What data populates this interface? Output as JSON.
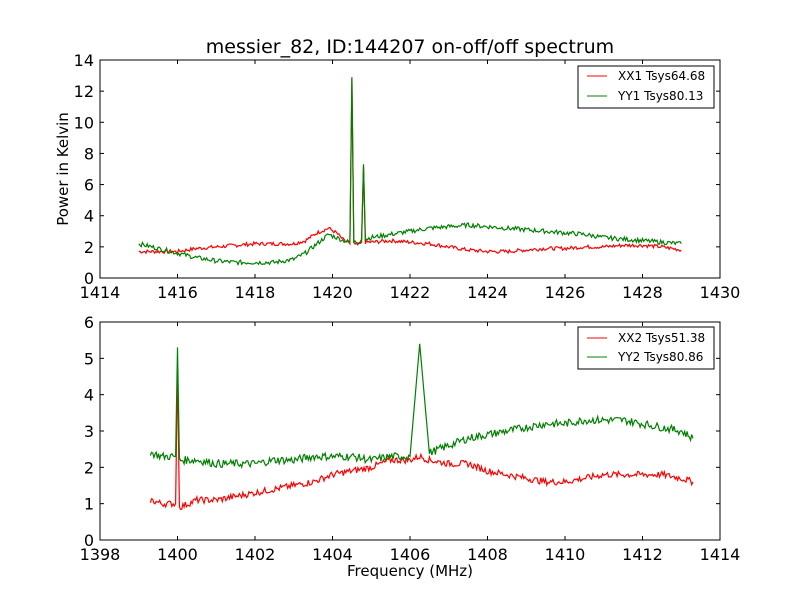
{
  "chart_data": [
    {
      "type": "line",
      "title": "messier_82, ID:144207 on-off/off spectrum",
      "xlabel": "",
      "ylabel": "Power in Kelvin",
      "xlim": [
        1414,
        1430
      ],
      "ylim": [
        0,
        14
      ],
      "xticks": [
        "1414",
        "1416",
        "1418",
        "1420",
        "1422",
        "1424",
        "1426",
        "1428",
        "1430"
      ],
      "yticks": [
        "0",
        "2",
        "4",
        "6",
        "8",
        "10",
        "12",
        "14"
      ],
      "grid": false,
      "legend_position": "top-right",
      "series": [
        {
          "name": "XX1 Tsys64.68",
          "color": "#ff0000",
          "x": [
            1415.0,
            1415.5,
            1416.0,
            1416.5,
            1417.0,
            1417.5,
            1418.0,
            1418.5,
            1419.0,
            1419.3,
            1419.6,
            1419.9,
            1420.1,
            1420.3,
            1420.45,
            1420.5,
            1420.55,
            1420.65,
            1420.75,
            1420.8,
            1420.85,
            1421.0,
            1421.5,
            1422.0,
            1422.5,
            1423.0,
            1423.5,
            1424.0,
            1424.5,
            1425.0,
            1425.5,
            1426.0,
            1426.5,
            1427.0,
            1427.5,
            1428.0,
            1428.5,
            1429.0
          ],
          "y": [
            1.7,
            1.7,
            1.7,
            1.9,
            2.0,
            2.1,
            2.2,
            2.2,
            2.2,
            2.4,
            2.9,
            3.2,
            2.9,
            2.4,
            2.2,
            12.8,
            2.2,
            2.1,
            2.3,
            7.2,
            2.3,
            2.3,
            2.4,
            2.3,
            2.2,
            2.0,
            1.8,
            1.7,
            1.7,
            1.8,
            1.9,
            1.9,
            2.0,
            2.0,
            2.1,
            2.1,
            2.0,
            1.8
          ]
        },
        {
          "name": "YY1 Tsys80.13",
          "color": "#008000",
          "x": [
            1415.0,
            1415.5,
            1416.0,
            1416.5,
            1417.0,
            1417.5,
            1418.0,
            1418.5,
            1419.0,
            1419.3,
            1419.6,
            1419.9,
            1420.1,
            1420.3,
            1420.45,
            1420.5,
            1420.55,
            1420.65,
            1420.75,
            1420.8,
            1420.85,
            1421.0,
            1421.5,
            1422.0,
            1422.5,
            1423.0,
            1423.5,
            1424.0,
            1424.5,
            1425.0,
            1425.5,
            1426.0,
            1426.5,
            1427.0,
            1427.5,
            1428.0,
            1428.5,
            1429.0
          ],
          "y": [
            2.2,
            1.9,
            1.6,
            1.3,
            1.1,
            1.0,
            1.0,
            1.0,
            1.2,
            1.6,
            2.2,
            2.8,
            2.6,
            2.4,
            2.3,
            12.9,
            2.3,
            2.3,
            2.5,
            7.3,
            2.5,
            2.6,
            2.8,
            3.0,
            3.2,
            3.3,
            3.4,
            3.3,
            3.2,
            3.1,
            3.0,
            2.9,
            2.8,
            2.6,
            2.5,
            2.4,
            2.3,
            2.2
          ]
        }
      ]
    },
    {
      "type": "line",
      "title": "",
      "xlabel": "Frequency (MHz)",
      "ylabel": "",
      "xlim": [
        1398,
        1414
      ],
      "ylim": [
        0,
        6
      ],
      "xticks": [
        "1398",
        "1400",
        "1402",
        "1404",
        "1406",
        "1408",
        "1410",
        "1412",
        "1414"
      ],
      "yticks": [
        "0",
        "1",
        "2",
        "3",
        "4",
        "5",
        "6"
      ],
      "grid": false,
      "legend_position": "top-right",
      "series": [
        {
          "name": "XX2 Tsys51.38",
          "color": "#ff0000",
          "x": [
            1399.3,
            1399.6,
            1399.95,
            1400.0,
            1400.05,
            1400.5,
            1401.0,
            1401.5,
            1402.0,
            1402.5,
            1403.0,
            1403.5,
            1404.0,
            1404.5,
            1405.0,
            1405.5,
            1406.0,
            1406.25,
            1406.5,
            1407.0,
            1407.5,
            1408.0,
            1408.5,
            1409.0,
            1409.5,
            1410.0,
            1410.5,
            1411.0,
            1411.5,
            1412.0,
            1412.5,
            1413.0,
            1413.3
          ],
          "y": [
            1.1,
            1.0,
            1.0,
            4.7,
            0.9,
            1.1,
            1.1,
            1.2,
            1.3,
            1.4,
            1.5,
            1.6,
            1.8,
            1.9,
            2.0,
            2.2,
            2.2,
            2.3,
            2.2,
            2.1,
            2.1,
            1.9,
            1.8,
            1.7,
            1.6,
            1.6,
            1.7,
            1.8,
            1.8,
            1.8,
            1.8,
            1.7,
            1.6
          ]
        },
        {
          "name": "YY2 Tsys80.86",
          "color": "#008000",
          "x": [
            1399.3,
            1399.6,
            1399.95,
            1400.0,
            1400.05,
            1400.5,
            1401.0,
            1401.5,
            1402.0,
            1402.5,
            1403.0,
            1403.5,
            1404.0,
            1404.5,
            1405.0,
            1405.5,
            1406.0,
            1406.25,
            1406.5,
            1407.0,
            1407.5,
            1408.0,
            1408.5,
            1409.0,
            1409.5,
            1410.0,
            1410.5,
            1411.0,
            1411.5,
            1412.0,
            1412.5,
            1413.0,
            1413.3
          ],
          "y": [
            2.4,
            2.3,
            2.3,
            5.3,
            2.2,
            2.2,
            2.1,
            2.1,
            2.1,
            2.2,
            2.2,
            2.3,
            2.3,
            2.3,
            2.2,
            2.3,
            2.3,
            5.4,
            2.4,
            2.6,
            2.8,
            2.9,
            3.0,
            3.1,
            3.2,
            3.2,
            3.3,
            3.3,
            3.3,
            3.2,
            3.1,
            3.0,
            2.8
          ]
        }
      ]
    }
  ]
}
